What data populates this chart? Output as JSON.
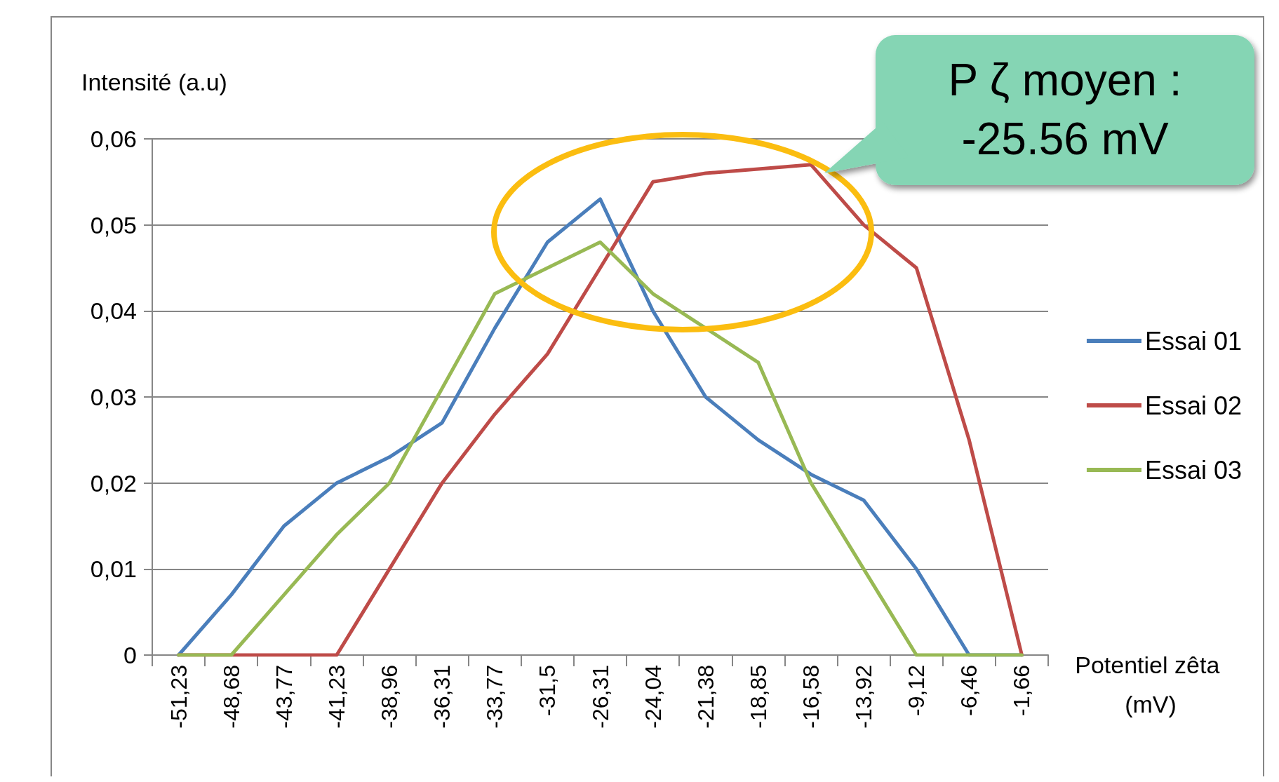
{
  "chart_data": {
    "type": "line",
    "ylabel": "Intensité (a.u)",
    "xlabel": "Potentiel zêta (mV)",
    "annotations": [
      "P ζ moyen : -25.56 mV"
    ],
    "categories": [
      "-51,23",
      "-48,68",
      "-43,77",
      "-41,23",
      "-38,96",
      "-36,31",
      "-33,77",
      "-31,5",
      "-26,31",
      "-24,04",
      "-21,38",
      "-18,85",
      "-16,58",
      "-13,92",
      "-9,12",
      "-6,46",
      "-1,66"
    ],
    "series": [
      {
        "name": "Essai 01",
        "color": "#4a7ebb",
        "values": [
          0,
          0.007,
          0.015,
          0.02,
          0.023,
          0.027,
          0.038,
          0.048,
          0.053,
          0.04,
          0.03,
          0.025,
          0.021,
          0.018,
          0.01,
          0,
          0
        ]
      },
      {
        "name": "Essai 02",
        "color": "#be4b48",
        "values": [
          0,
          0,
          0,
          0,
          0.01,
          0.02,
          0.028,
          0.035,
          0.045,
          0.055,
          0.056,
          0.0565,
          0.057,
          0.05,
          0.045,
          0.025,
          0
        ]
      },
      {
        "name": "Essai 03",
        "color": "#98b954",
        "values": [
          0,
          0,
          0.007,
          0.014,
          0.02,
          0.031,
          0.042,
          0.045,
          0.048,
          0.042,
          0.038,
          0.034,
          0.02,
          0.01,
          0,
          0,
          0
        ]
      }
    ],
    "ylim": [
      0,
      0.06
    ],
    "yticks": [
      {
        "value": 0,
        "label": "0"
      },
      {
        "value": 0.01,
        "label": "0,01"
      },
      {
        "value": 0.02,
        "label": "0,02"
      },
      {
        "value": 0.03,
        "label": "0,03"
      },
      {
        "value": 0.04,
        "label": "0,04"
      },
      {
        "value": 0.05,
        "label": "0,05"
      },
      {
        "value": 0.06,
        "label": "0,06"
      }
    ],
    "grid": "y",
    "legend": "right",
    "marker": "none",
    "line_style": "solid"
  }
}
